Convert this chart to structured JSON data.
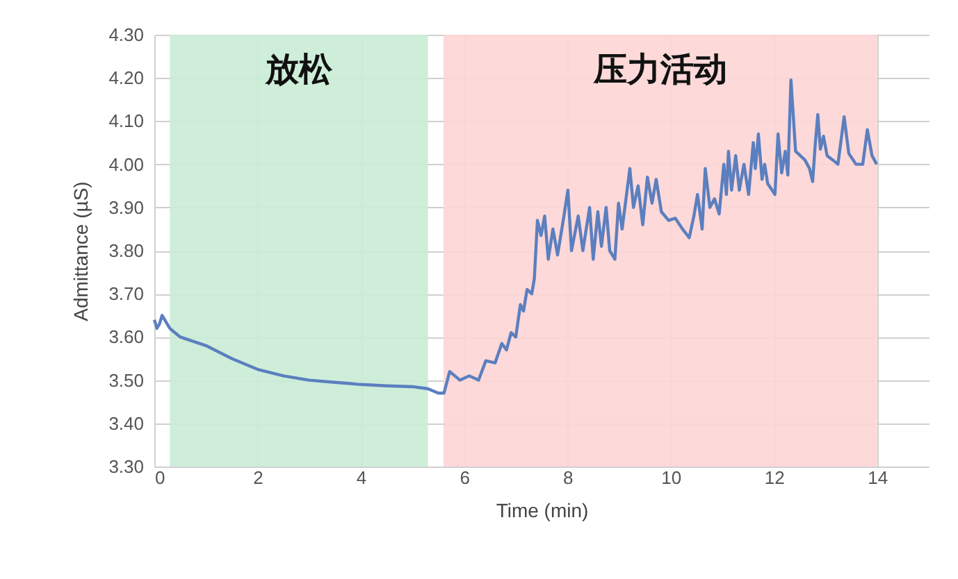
{
  "chart_data": {
    "type": "line",
    "xlabel": "Time (min)",
    "ylabel": "Admittance (µS)",
    "xlim": [
      0,
      15
    ],
    "xticks": [
      0,
      2,
      4,
      6,
      8,
      10,
      12,
      14
    ],
    "ylim": [
      3.3,
      4.3
    ],
    "yticks": [
      {
        "value": 3.3,
        "label": "3.30"
      },
      {
        "value": 3.4,
        "label": "3.40"
      },
      {
        "value": 3.5,
        "label": "3.50"
      },
      {
        "value": 3.6,
        "label": "3.60"
      },
      {
        "value": 3.7,
        "label": "3.70"
      },
      {
        "value": 3.8,
        "label": "3.80"
      },
      {
        "value": 3.9,
        "label": "3.90"
      },
      {
        "value": 4.0,
        "label": "4.00"
      },
      {
        "value": 4.1,
        "label": "4.10"
      },
      {
        "value": 4.2,
        "label": "4.20"
      },
      {
        "value": 4.3,
        "label": "4.30"
      }
    ],
    "grid": true,
    "marker": "none",
    "line_style": "solid",
    "bands": [
      {
        "axis": "x",
        "from": 0.3,
        "to": 5.3,
        "label": "放松",
        "color": "#c9ecd6"
      },
      {
        "axis": "x",
        "from": 5.6,
        "to": 14.0,
        "label": "压力活动",
        "color": "#fdd5d5"
      }
    ],
    "series": [
      {
        "color": "#5b7fbf",
        "x": [
          0,
          0.05,
          0.1,
          0.15,
          0.3,
          0.5,
          1,
          1.5,
          2,
          2.5,
          3,
          3.5,
          4,
          4.5,
          5,
          5.3,
          5.5,
          5.61,
          5.72,
          5.92,
          6.1,
          6.28,
          6.42,
          6.6,
          6.73,
          6.82,
          6.91,
          7.0,
          7.09,
          7.15,
          7.22,
          7.31,
          7.36,
          7.42,
          7.49,
          7.56,
          7.63,
          7.72,
          7.81,
          7.92,
          8.01,
          8.08,
          8.21,
          8.3,
          8.43,
          8.5,
          8.59,
          8.66,
          8.75,
          8.82,
          8.92,
          8.99,
          9.06,
          9.21,
          9.28,
          9.37,
          9.46,
          9.55,
          9.64,
          9.72,
          9.82,
          9.96,
          10.09,
          10.23,
          10.36,
          10.45,
          10.52,
          10.61,
          10.67,
          10.76,
          10.85,
          10.94,
          11.03,
          11.08,
          11.12,
          11.18,
          11.26,
          11.33,
          11.42,
          11.51,
          11.6,
          11.64,
          11.7,
          11.77,
          11.82,
          11.88,
          12.02,
          12.08,
          12.15,
          12.22,
          12.27,
          12.33,
          12.42,
          12.6,
          12.69,
          12.75,
          12.8,
          12.85,
          12.9,
          12.96,
          13.03,
          13.14,
          13.24,
          13.36,
          13.45,
          13.59,
          13.72,
          13.81,
          13.9,
          13.99
        ],
        "values": [
          3.64,
          3.62,
          3.63,
          3.65,
          3.62,
          3.6,
          3.58,
          3.55,
          3.525,
          3.51,
          3.5,
          3.495,
          3.49,
          3.487,
          3.485,
          3.48,
          3.47,
          3.47,
          3.52,
          3.5,
          3.51,
          3.5,
          3.545,
          3.54,
          3.585,
          3.57,
          3.61,
          3.6,
          3.675,
          3.66,
          3.71,
          3.7,
          3.735,
          3.87,
          3.835,
          3.88,
          3.78,
          3.85,
          3.79,
          3.87,
          3.94,
          3.8,
          3.88,
          3.8,
          3.9,
          3.78,
          3.89,
          3.81,
          3.9,
          3.8,
          3.78,
          3.91,
          3.85,
          3.99,
          3.9,
          3.95,
          3.86,
          3.97,
          3.91,
          3.965,
          3.89,
          3.87,
          3.875,
          3.85,
          3.83,
          3.88,
          3.93,
          3.85,
          3.99,
          3.9,
          3.92,
          3.885,
          4.0,
          3.93,
          4.03,
          3.94,
          4.02,
          3.94,
          4.0,
          3.93,
          4.05,
          3.99,
          4.07,
          3.965,
          4.0,
          3.955,
          3.93,
          4.07,
          3.98,
          4.03,
          3.975,
          4.195,
          4.03,
          4.01,
          3.99,
          3.96,
          4.045,
          4.115,
          4.035,
          4.065,
          4.02,
          4.01,
          4.0,
          4.11,
          4.025,
          4.0,
          4.0,
          4.08,
          4.02,
          4.0
        ]
      }
    ]
  }
}
